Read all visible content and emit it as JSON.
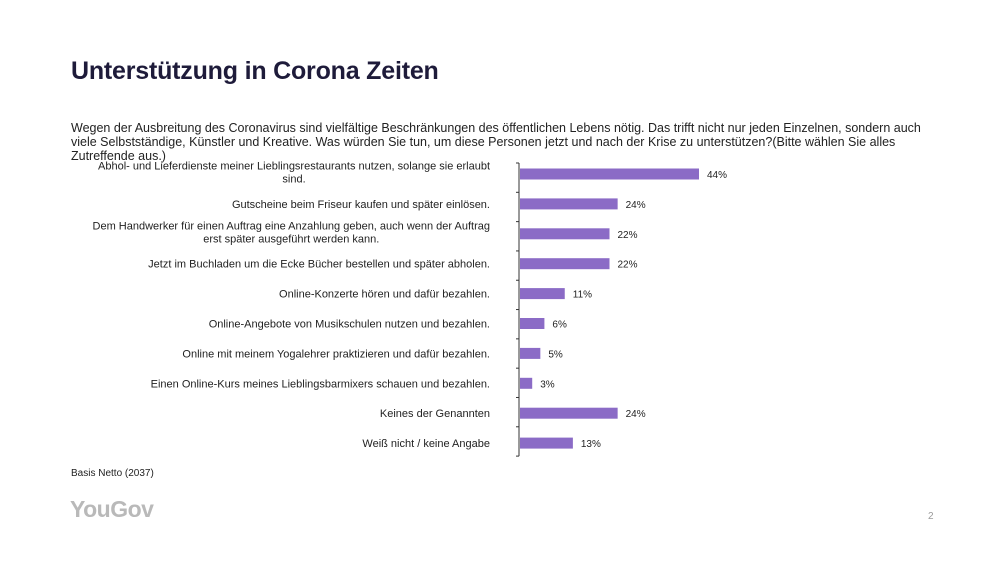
{
  "page": {
    "title": "Unterstützung in Corona Zeiten",
    "question": "Wegen der Ausbreitung des Coronavirus sind vielfältige Beschränkungen des öffentlichen Lebens nötig. Das trifft nicht nur jeden Einzelnen, sondern auch viele Selbstständige, Künstler und Kreative. Was würden Sie tun, um diese Personen jetzt und nach der Krise zu unterstützen?(Bitte wählen Sie alles Zutreffende aus.)",
    "basis": "Basis Netto (2037)",
    "logo": "YouGov",
    "page_number": "2"
  },
  "colors": {
    "bar": "#8B6BC6",
    "axis": "#333333",
    "title": "#1e1b3a"
  },
  "chart_data": {
    "type": "bar",
    "orientation": "horizontal",
    "unit": "%",
    "categories": [
      "Abhol- und Lieferdienste meiner Lieblingsrestaurants nutzen, solange sie erlaubt sind.",
      "Gutscheine beim Friseur kaufen und später einlösen.",
      "Dem Handwerker für einen Auftrag eine Anzahlung geben, auch wenn der Auftrag erst später ausgeführt werden kann.",
      "Jetzt im Buchladen um die Ecke Bücher bestellen und später abholen.",
      "Online-Konzerte hören und dafür bezahlen.",
      "Online-Angebote von Musikschulen nutzen und bezahlen.",
      "Online mit meinem Yogalehrer praktizieren und dafür bezahlen.",
      "Einen Online-Kurs meines Lieblingsbarmixers schauen und bezahlen.",
      "Keines der Genannten",
      "Weiß nicht / keine Angabe"
    ],
    "category_lines": [
      [
        "Abhol- und Lieferdienste meiner Lieblingsrestaurants nutzen, solange sie erlaubt",
        "sind."
      ],
      [
        "Gutscheine beim Friseur kaufen und später einlösen."
      ],
      [
        "Dem Handwerker für einen Auftrag eine Anzahlung geben, auch wenn der Auftrag",
        "erst später ausgeführt werden kann."
      ],
      [
        "Jetzt im Buchladen um die Ecke Bücher bestellen und später abholen."
      ],
      [
        "Online-Konzerte hören und dafür bezahlen."
      ],
      [
        "Online-Angebote von Musikschulen nutzen und bezahlen."
      ],
      [
        "Online mit meinem Yogalehrer praktizieren und dafür bezahlen."
      ],
      [
        "Einen Online-Kurs meines Lieblingsbarmixers schauen und bezahlen."
      ],
      [
        "Keines der Genannten"
      ],
      [
        "Weiß nicht / keine Angabe"
      ]
    ],
    "values": [
      44,
      24,
      22,
      22,
      11,
      6,
      5,
      3,
      24,
      13
    ],
    "value_labels": [
      "44%",
      "24%",
      "22%",
      "22%",
      "11%",
      "6%",
      "5%",
      "3%",
      "24%",
      "13%"
    ],
    "xlim": [
      0,
      44
    ],
    "grid": false,
    "legend": "none"
  }
}
